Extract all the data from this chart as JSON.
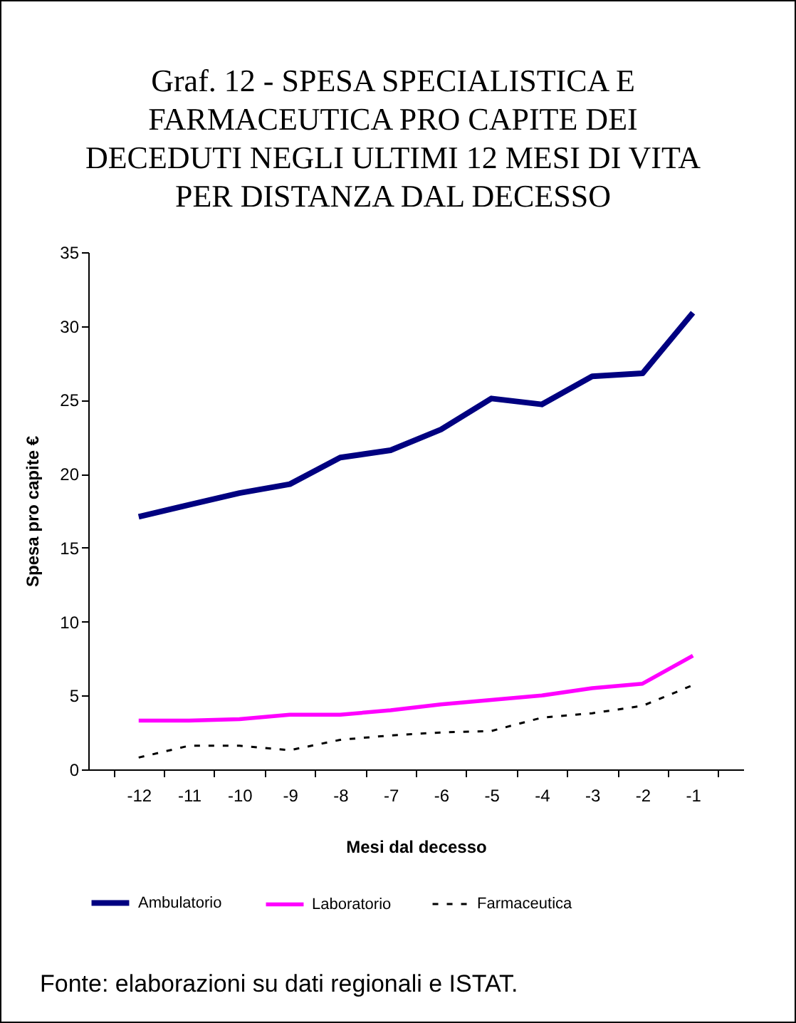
{
  "chart_data": {
    "type": "line",
    "title": "Graf. 12 - SPESA SPECIALISTICA E FARMACEUTICA PRO CAPITE DEI DECEDUTI NEGLI ULTIMI 12 MESI DI VITA PER DISTANZA DAL DECESSO",
    "xlabel": "Mesi dal decesso",
    "ylabel": "Spesa pro capite €",
    "categories": [
      "-12",
      "-11",
      "-10",
      "-9",
      "-8",
      "-7",
      "-6",
      "-5",
      "-4",
      "-3",
      "-2",
      "-1"
    ],
    "series": [
      {
        "name": "Ambulatorio",
        "color": "#000080",
        "line_style": "solid",
        "values": [
          17.1,
          17.9,
          18.7,
          19.3,
          21.1,
          21.6,
          23.0,
          25.1,
          24.7,
          26.6,
          26.8,
          30.9
        ]
      },
      {
        "name": "Laboratorio",
        "color": "#ff00ff",
        "line_style": "solid",
        "values": [
          3.3,
          3.3,
          3.4,
          3.7,
          3.7,
          4.0,
          4.4,
          4.7,
          5.0,
          5.5,
          5.8,
          7.7
        ]
      },
      {
        "name": "Farmaceutica",
        "color": "#000000",
        "line_style": "dotted",
        "values": [
          0.8,
          1.6,
          1.6,
          1.3,
          2.0,
          2.3,
          2.5,
          2.6,
          3.5,
          3.8,
          4.3,
          5.7
        ]
      }
    ],
    "ylim": [
      0,
      35
    ],
    "yticks": [
      0,
      5,
      10,
      15,
      20,
      25,
      30,
      35
    ],
    "grid": false,
    "legend": "bottom",
    "marker": "none",
    "annotations": [
      "Fonte: elaborazioni su dati regionali e ISTAT."
    ]
  }
}
